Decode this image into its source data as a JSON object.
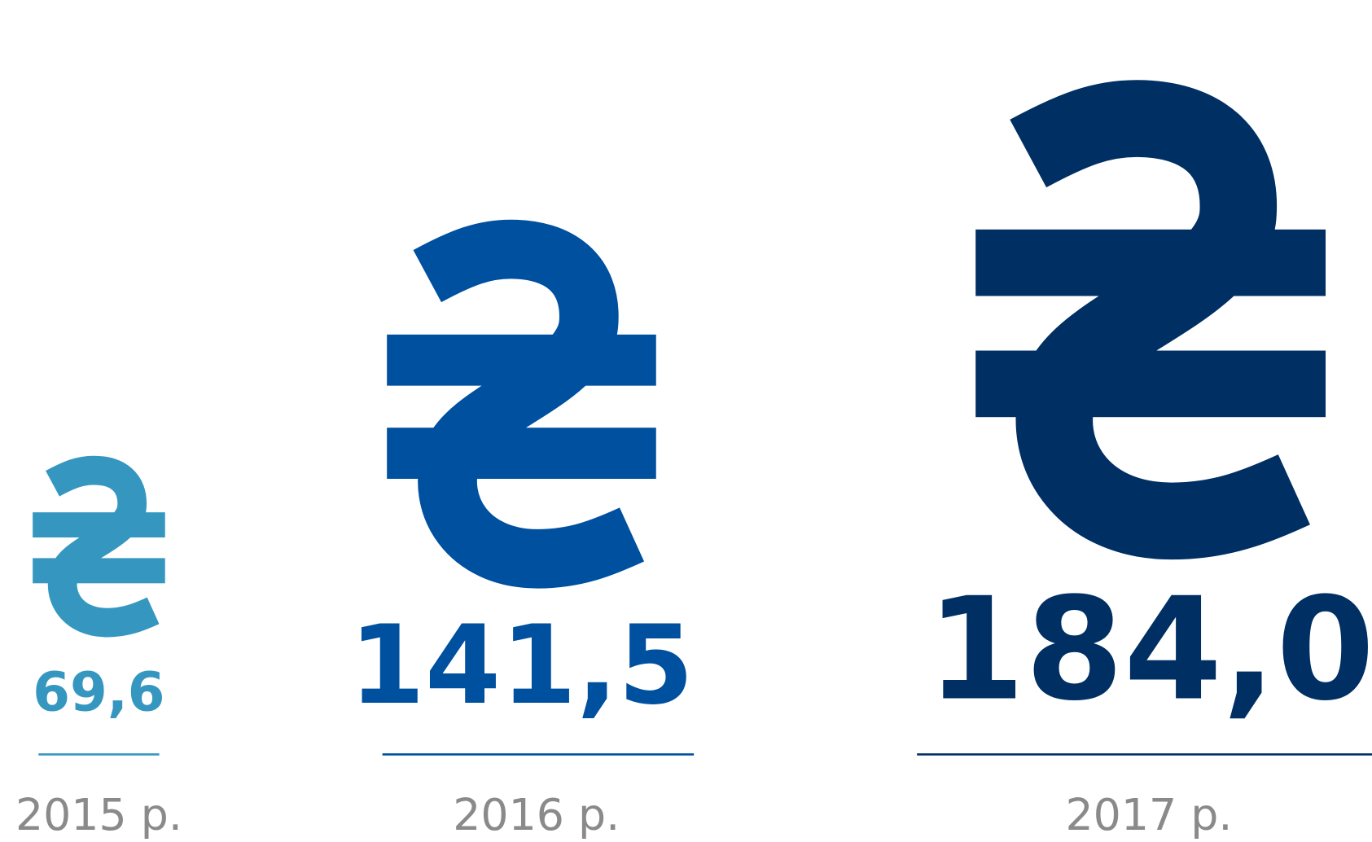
{
  "chart_data": {
    "type": "pictograph",
    "categories": [
      "2015 р.",
      "2016 р.",
      "2017 р."
    ],
    "values": [
      69.6,
      141.5,
      184.0
    ],
    "value_labels": [
      "69,6",
      "141,5",
      "184,0"
    ],
    "colors": [
      "#3597c0",
      "#0050a0",
      "#003063"
    ]
  }
}
